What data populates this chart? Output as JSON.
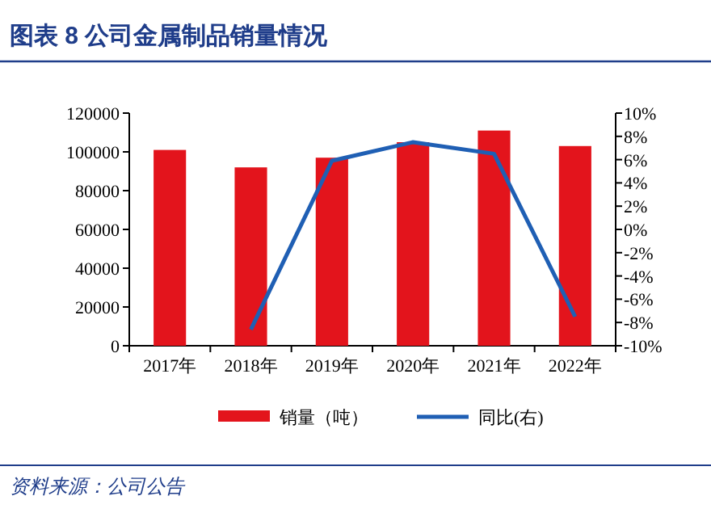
{
  "chart_data": {
    "type": "bar",
    "title": "图表 8   公司金属制品销量情况",
    "categories": [
      "2017年",
      "2018年",
      "2019年",
      "2020年",
      "2021年",
      "2022年"
    ],
    "series": [
      {
        "name": "销量（吨）",
        "color": "#e3141c",
        "values": [
          101000,
          92000,
          97000,
          105000,
          111000,
          103000
        ]
      },
      {
        "name": "同比(右)",
        "type": "line",
        "axis": "y2",
        "color": "#1f5fb4",
        "values": [
          null,
          -8.6,
          5.9,
          7.5,
          6.5,
          -7.5
        ]
      }
    ],
    "ylim": [
      0,
      120000
    ],
    "yticks": [
      0,
      20000,
      40000,
      60000,
      80000,
      100000,
      120000
    ],
    "y2lim": [
      -10,
      10
    ],
    "y2ticks": [
      {
        "value": -10,
        "label": "-10%"
      },
      {
        "value": -8,
        "label": "-8%"
      },
      {
        "value": -6,
        "label": "-6%"
      },
      {
        "value": -4,
        "label": "-4%"
      },
      {
        "value": -2,
        "label": "-2%"
      },
      {
        "value": 0,
        "label": "0%"
      },
      {
        "value": 2,
        "label": "2%"
      },
      {
        "value": 4,
        "label": "4%"
      },
      {
        "value": 6,
        "label": "6%"
      },
      {
        "value": 8,
        "label": "8%"
      },
      {
        "value": 10,
        "label": "10%"
      }
    ],
    "grid": false,
    "legend": "bottom",
    "marker": "none",
    "line_style": "solid",
    "annotations": [
      "资料来源：公司公告"
    ]
  }
}
